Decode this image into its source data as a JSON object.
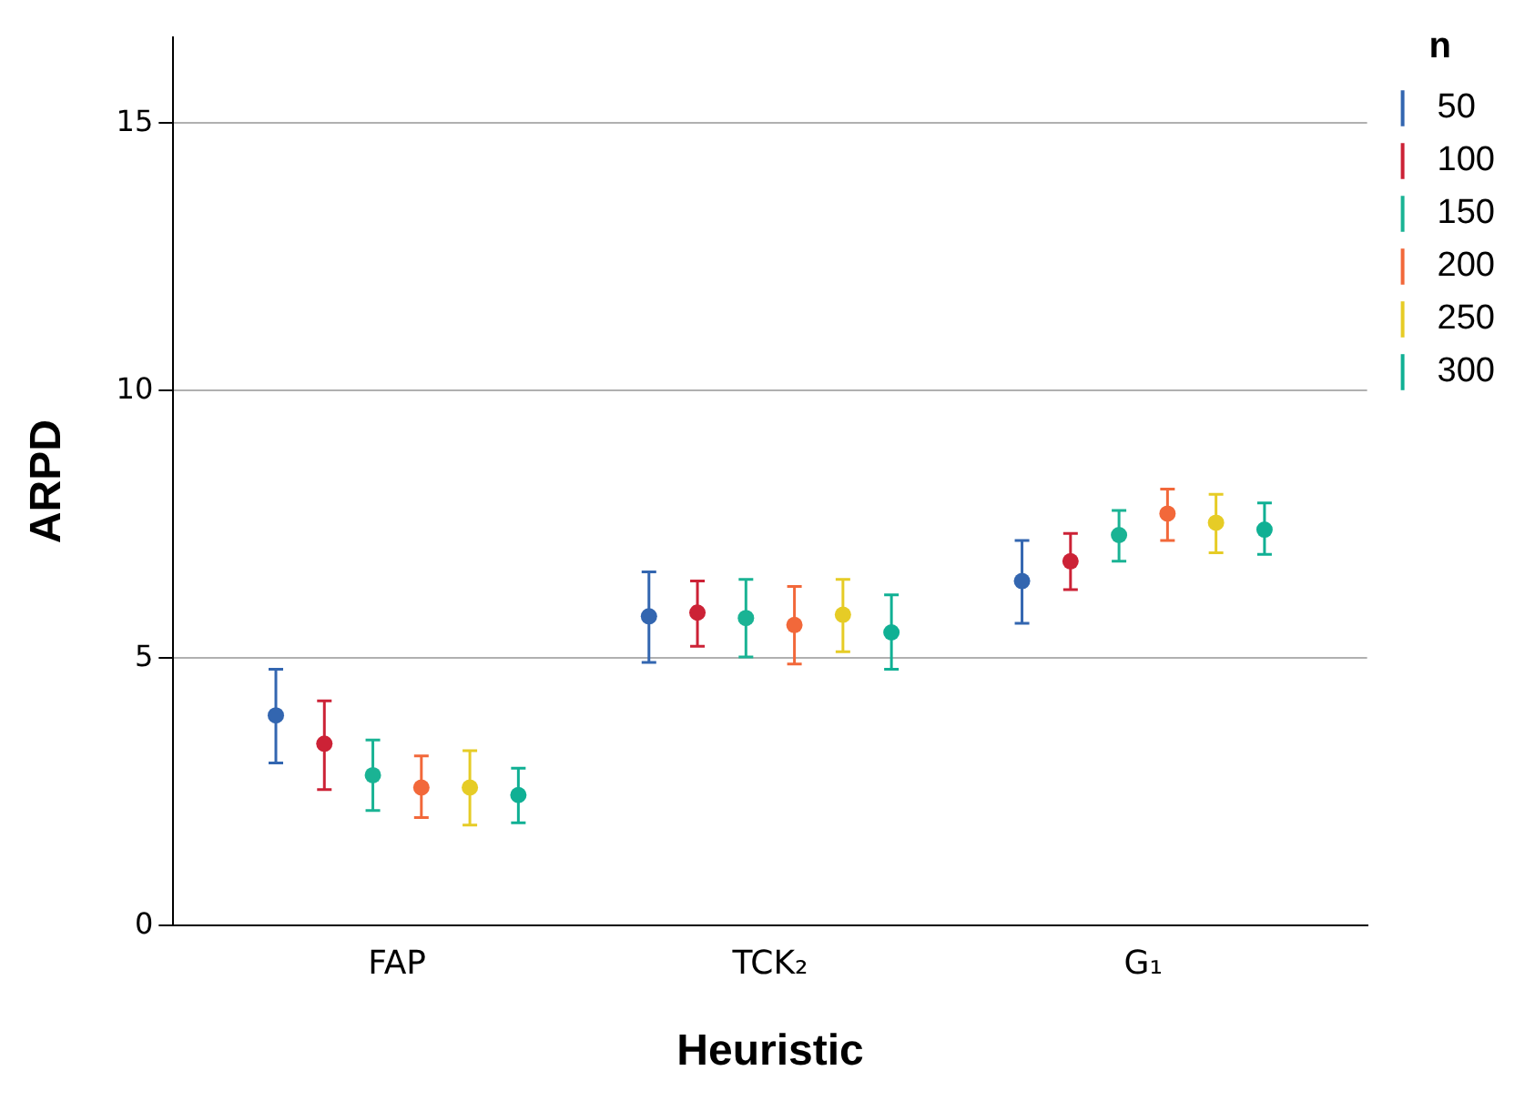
{
  "chart_data": {
    "type": "scatter",
    "xlabel": "Heuristic",
    "ylabel": "ARPD",
    "legend_title": "n",
    "categories": [
      "FAP",
      "TCK₂",
      "G₁"
    ],
    "ylim": [
      0,
      16.6
    ],
    "yticks": [
      0,
      5,
      10,
      15
    ],
    "grid": "y",
    "legend": "top right",
    "marker": "circle",
    "series": [
      {
        "name": "50",
        "color": "#3366b0",
        "values": [
          3.93,
          5.78,
          6.44
        ],
        "errors": [
          [
            3.04,
            4.79
          ],
          [
            4.92,
            6.61
          ],
          [
            5.65,
            7.2
          ]
        ]
      },
      {
        "name": "100",
        "color": "#cc2236",
        "values": [
          3.4,
          5.85,
          6.81
        ],
        "errors": [
          [
            2.54,
            4.2
          ],
          [
            5.22,
            6.44
          ],
          [
            6.28,
            7.33
          ]
        ]
      },
      {
        "name": "150",
        "color": "#1ab394",
        "values": [
          2.81,
          5.75,
          7.3
        ],
        "errors": [
          [
            2.15,
            3.47
          ],
          [
            5.02,
            6.47
          ],
          [
            6.81,
            7.76
          ]
        ]
      },
      {
        "name": "200",
        "color": "#f2683a",
        "values": [
          2.58,
          5.62,
          7.7
        ],
        "errors": [
          [
            2.02,
            3.17
          ],
          [
            4.89,
            6.34
          ],
          [
            7.2,
            8.16
          ]
        ]
      },
      {
        "name": "250",
        "color": "#e6cc26",
        "values": [
          2.58,
          5.81,
          7.53
        ],
        "errors": [
          [
            1.88,
            3.27
          ],
          [
            5.12,
            6.47
          ],
          [
            6.97,
            8.06
          ]
        ]
      },
      {
        "name": "300",
        "color": "#10b094",
        "values": [
          2.44,
          5.48,
          7.4
        ],
        "errors": [
          [
            1.92,
            2.94
          ],
          [
            4.79,
            6.18
          ],
          [
            6.94,
            7.9
          ]
        ]
      }
    ]
  }
}
